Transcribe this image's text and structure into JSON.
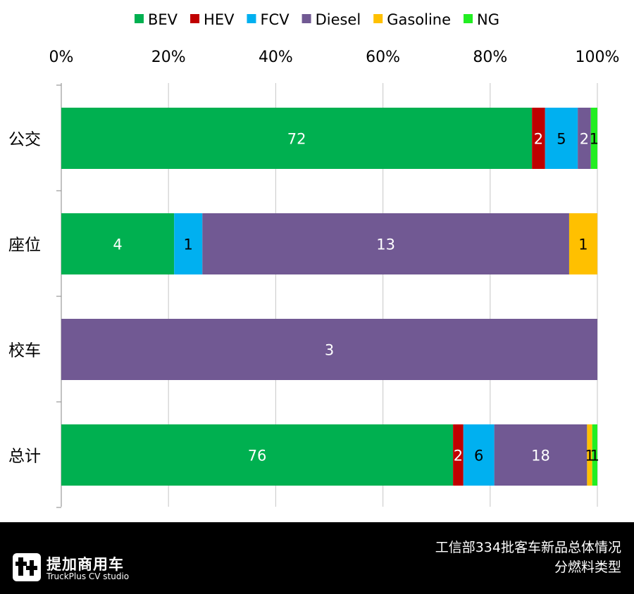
{
  "chart_data": {
    "type": "bar",
    "orientation": "horizontal",
    "stacked": "percent",
    "categories": [
      "公交",
      "座位",
      "校车",
      "总计"
    ],
    "series": [
      {
        "name": "BEV",
        "color": "#00B050",
        "values": [
          72,
          4,
          0,
          76
        ]
      },
      {
        "name": "HEV",
        "color": "#C00000",
        "values": [
          2,
          0,
          0,
          2
        ]
      },
      {
        "name": "FCV",
        "color": "#00B0F0",
        "values": [
          5,
          1,
          0,
          6
        ]
      },
      {
        "name": "Diesel",
        "color": "#715993",
        "values": [
          2,
          13,
          3,
          18
        ]
      },
      {
        "name": "Gasoline",
        "color": "#FFC000",
        "values": [
          0,
          1,
          0,
          1
        ]
      },
      {
        "name": "NG",
        "color": "#22EE22",
        "values": [
          1,
          0,
          0,
          1
        ]
      }
    ],
    "xticks": [
      "0%",
      "20%",
      "40%",
      "60%",
      "80%",
      "100%"
    ],
    "xlim": [
      0,
      100
    ],
    "x_axis_position": "top",
    "legend_position": "top",
    "grid": true,
    "title": "",
    "xlabel": "",
    "ylabel": ""
  },
  "footer": {
    "brand": "提加商用车",
    "brand_sub": "TruckPlus CV studio",
    "caption_line1": "工信部334批客车新品总体情况",
    "caption_line2": "分燃料类型"
  }
}
